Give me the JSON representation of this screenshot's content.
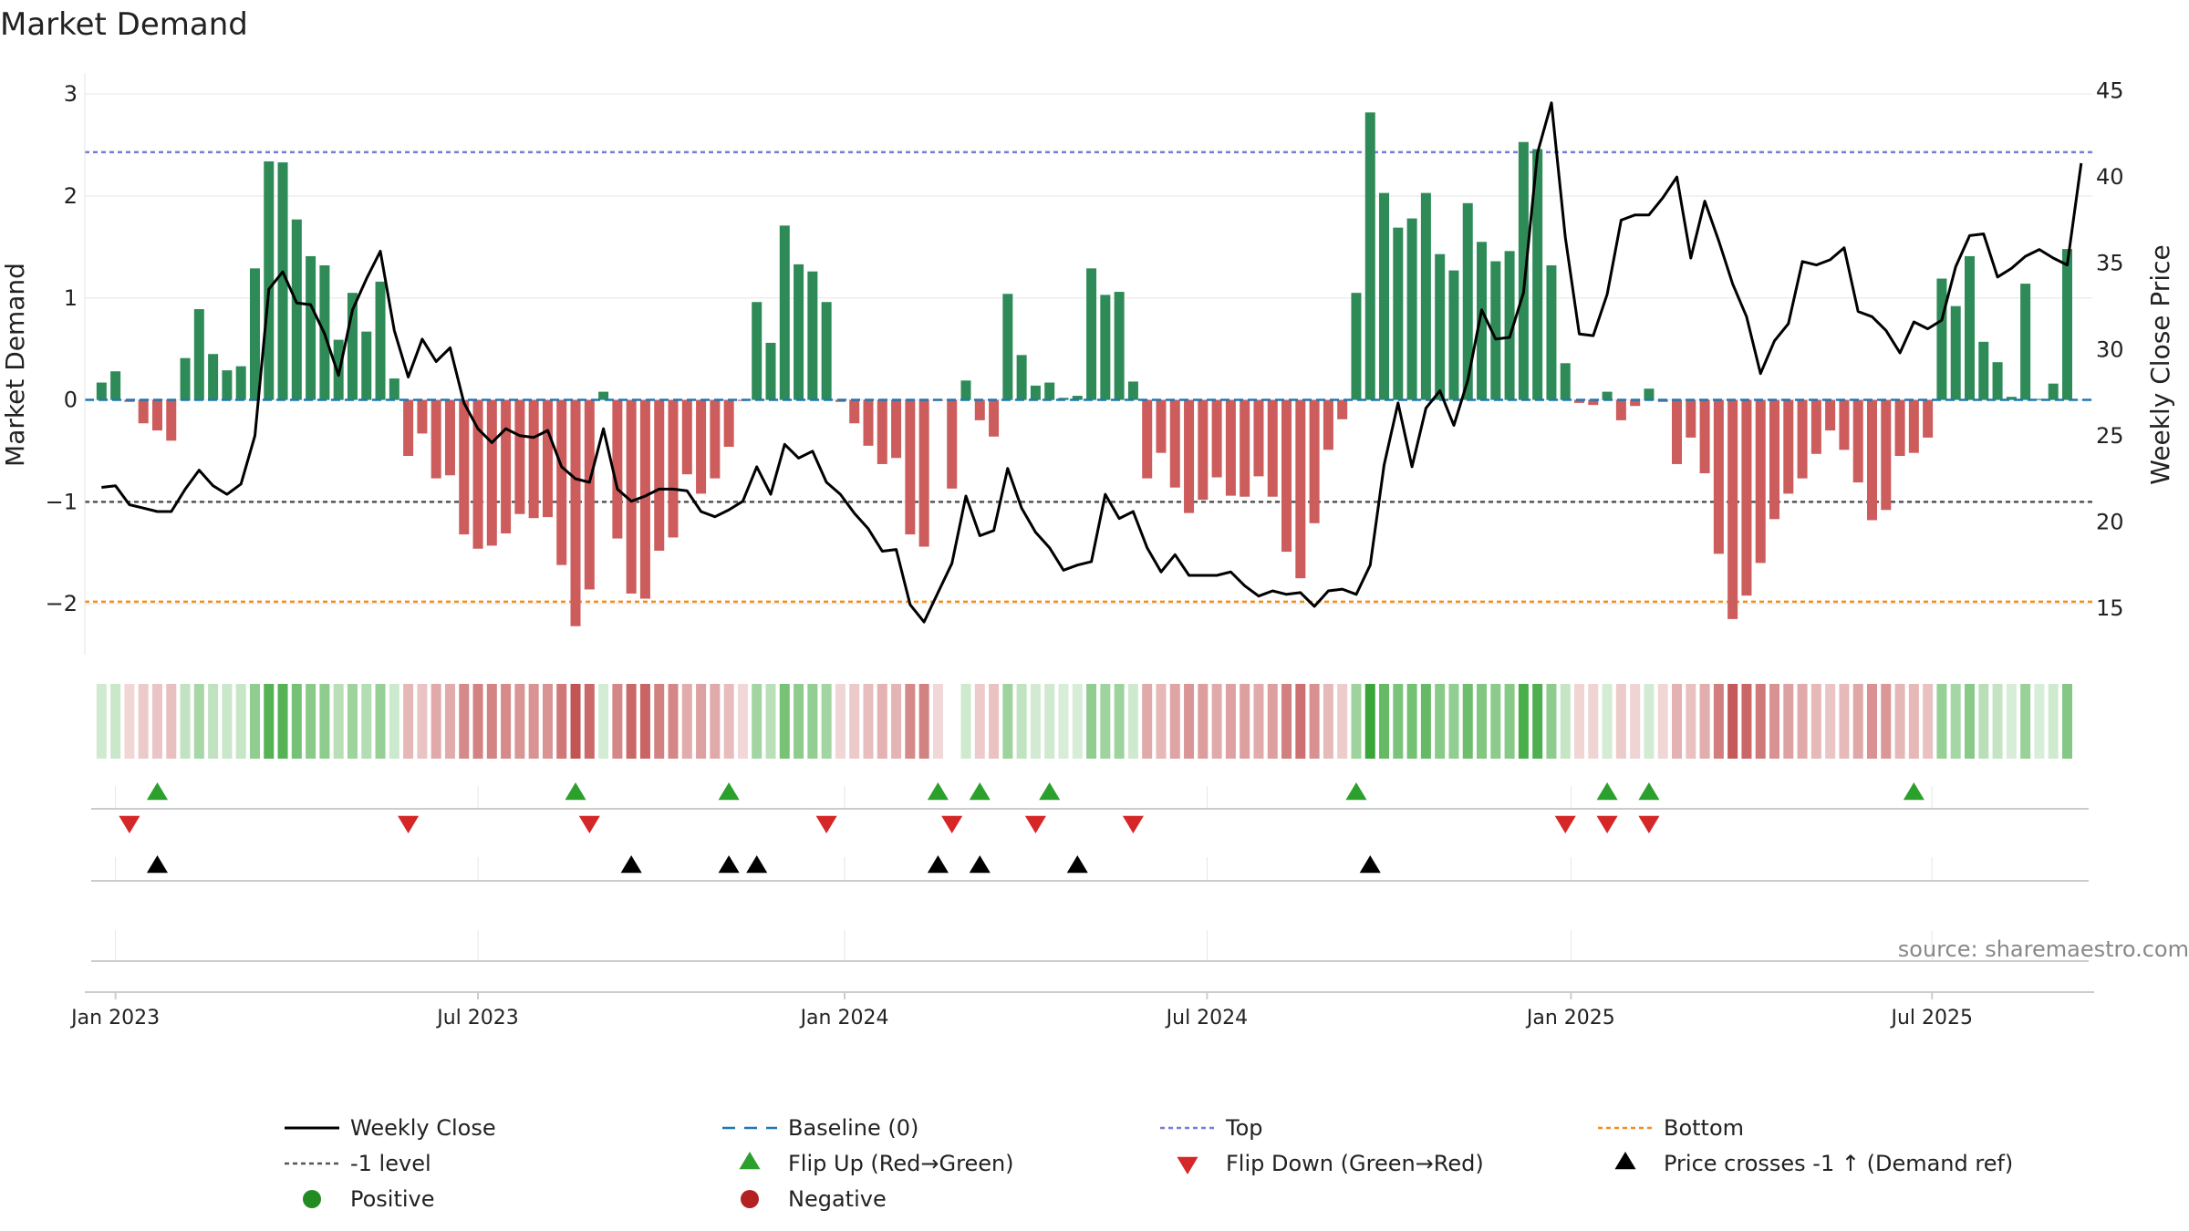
{
  "chart_data": {
    "type": "bar",
    "title": "Market Demand",
    "ylabel_left": "Market Demand",
    "ylabel_right": "Weekly Close Price",
    "left_ticks": [
      3,
      2,
      1,
      0,
      -1,
      -2
    ],
    "left_tick_labels": [
      "3",
      "2",
      "1",
      "0",
      "−1",
      "−2"
    ],
    "left_range": [
      -2.5,
      3.1
    ],
    "right_ticks": [
      45,
      40,
      35,
      30,
      25,
      20,
      15
    ],
    "right_tick_labels": [
      "45",
      "40",
      "35",
      "30",
      "25",
      "20",
      "15"
    ],
    "right_range": [
      12.3,
      45.4
    ],
    "x_ticks": [
      {
        "label": "Jan 2023",
        "week": 1
      },
      {
        "label": "Jul 2023",
        "week": 27
      },
      {
        "label": "Jan 2024",
        "week": 53.3
      },
      {
        "label": "Jul 2024",
        "week": 79.3
      },
      {
        "label": "Jan 2025",
        "week": 105.4
      },
      {
        "label": "Jul 2025",
        "week": 131.3
      }
    ],
    "weeks_range": [
      -1.2,
      142.8
    ],
    "reference_lines": {
      "top": 2.43,
      "bottom": -1.98,
      "minus_one": -1
    },
    "demand": [
      0.17,
      0.28,
      -0.02,
      -0.23,
      -0.3,
      -0.4,
      0.41,
      0.89,
      0.45,
      0.29,
      0.33,
      1.29,
      2.34,
      2.33,
      1.77,
      1.41,
      1.32,
      0.59,
      1.05,
      0.67,
      1.16,
      0.21,
      -0.55,
      -0.33,
      -0.77,
      -0.74,
      -1.32,
      -1.46,
      -1.43,
      -1.31,
      -1.12,
      -1.16,
      -1.15,
      -1.62,
      -2.22,
      -1.86,
      0.08,
      -1.36,
      -1.9,
      -1.95,
      -1.48,
      -1.35,
      -0.73,
      -0.92,
      -0.77,
      -0.46,
      -0.01,
      0.96,
      0.56,
      1.71,
      1.33,
      1.26,
      0.96,
      -0.02,
      -0.23,
      -0.45,
      -0.63,
      -0.57,
      -1.32,
      -1.44,
      -0.01,
      -0.87,
      0.19,
      -0.2,
      -0.36,
      1.04,
      0.44,
      0.14,
      0.17,
      0.02,
      0.04,
      1.29,
      1.03,
      1.06,
      0.18,
      -0.77,
      -0.52,
      -0.86,
      -1.11,
      -0.98,
      -0.76,
      -0.94,
      -0.95,
      -0.75,
      -0.95,
      -1.49,
      -1.75,
      -1.21,
      -0.49,
      -0.19,
      1.05,
      2.82,
      2.03,
      1.69,
      1.78,
      2.03,
      1.43,
      1.27,
      1.93,
      1.55,
      1.36,
      1.46,
      2.53,
      2.46,
      1.32,
      0.36,
      -0.03,
      -0.05,
      0.08,
      -0.2,
      -0.06,
      0.11,
      -0.02,
      -0.63,
      -0.37,
      -0.72,
      -1.51,
      -2.15,
      -1.92,
      -1.6,
      -1.17,
      -0.92,
      -0.77,
      -0.53,
      -0.3,
      -0.49,
      -0.81,
      -1.18,
      -1.08,
      -0.55,
      -0.52,
      -0.37,
      1.19,
      0.92,
      1.41,
      0.57,
      0.37,
      0.03,
      1.14,
      0.01,
      0.16,
      1.48
    ],
    "close": [
      22,
      22.1,
      21,
      20.8,
      20.6,
      20.6,
      21.9,
      23,
      22.1,
      21.6,
      22.2,
      25,
      33.5,
      34.5,
      32.7,
      32.6,
      30.9,
      28.5,
      32.3,
      34.1,
      35.7,
      31.1,
      28.4,
      30.6,
      29.3,
      30.1,
      26.9,
      25.4,
      24.6,
      25.4,
      25,
      24.9,
      25.3,
      23.2,
      22.5,
      22.3,
      25.4,
      21.9,
      21.2,
      21.5,
      21.9,
      21.9,
      21.8,
      20.6,
      20.3,
      20.7,
      21.2,
      23.2,
      21.6,
      24.5,
      23.7,
      24.1,
      22.3,
      21.6,
      20.5,
      19.6,
      18.3,
      18.4,
      15.2,
      14.2,
      15.9,
      17.6,
      21.5,
      19.2,
      19.5,
      23.1,
      20.8,
      19.4,
      18.5,
      17.2,
      17.5,
      17.7,
      21.6,
      20.2,
      20.6,
      18.5,
      17.1,
      18.1,
      16.9,
      16.9,
      16.9,
      17.1,
      16.3,
      15.7,
      16,
      15.8,
      15.9,
      15.1,
      16,
      16.1,
      15.8,
      17.5,
      23.3,
      26.9,
      23.2,
      26.6,
      27.6,
      25.6,
      28.2,
      32.3,
      30.6,
      30.7,
      33.3,
      41.4,
      44.3,
      36.5,
      30.9,
      30.8,
      33.2,
      37.5,
      37.8,
      37.8,
      38.8,
      40,
      35.3,
      38.6,
      36.3,
      33.8,
      31.9,
      28.6,
      30.5,
      31.5,
      35.1,
      34.9,
      35.2,
      35.9,
      32.2,
      31.9,
      31.1,
      29.8,
      31.6,
      31.2,
      31.7,
      34.8,
      36.6,
      36.7,
      34.2,
      34.7,
      35.4,
      35.8,
      35.3,
      34.9,
      40.8
    ],
    "strip_alpha_scale": 2.8,
    "strip_missing": [
      61
    ],
    "flip_up_weeks": [
      4,
      34,
      45,
      60,
      63,
      68,
      90,
      108,
      111,
      130
    ],
    "flip_down_weeks": [
      2,
      22,
      35,
      52,
      61,
      67,
      74,
      105,
      108,
      111
    ],
    "price_cross_weeks": [
      4,
      38,
      45,
      47,
      60,
      63,
      70,
      91
    ],
    "source": "source: sharemaestro.com",
    "legend": [
      {
        "key": "close",
        "label": "Weekly Close"
      },
      {
        "key": "baseline",
        "label": "Baseline (0)"
      },
      {
        "key": "top",
        "label": "Top"
      },
      {
        "key": "bottom",
        "label": "Bottom"
      },
      {
        "key": "minus_one",
        "label": "-1 level"
      },
      {
        "key": "flip_up",
        "label": "Flip Up (Red→Green)"
      },
      {
        "key": "flip_down",
        "label": "Flip Down (Green→Red)"
      },
      {
        "key": "price_cross",
        "label": "Price crosses -1 ↑ (Demand ref)"
      },
      {
        "key": "positive",
        "label": "Positive"
      },
      {
        "key": "negative",
        "label": "Negative"
      }
    ]
  },
  "colors": {
    "positive_bar": "#2e8b57",
    "negative_bar": "#cd5c5c",
    "strip_positive": "#2ca02c",
    "strip_negative": "#b22222",
    "close_line": "#000000",
    "baseline": "#1f77b4",
    "top_line": "#7b7bd6",
    "bottom_line": "#f28e1c",
    "minus_one_line": "#555555",
    "flip_up": "#2ca02c",
    "flip_down": "#d62728",
    "price_cross": "#000000",
    "positive_dot": "#228b22",
    "negative_dot": "#b22222",
    "grid": "#e6e6e6",
    "axis": "#cccccc",
    "source": "#888888"
  }
}
